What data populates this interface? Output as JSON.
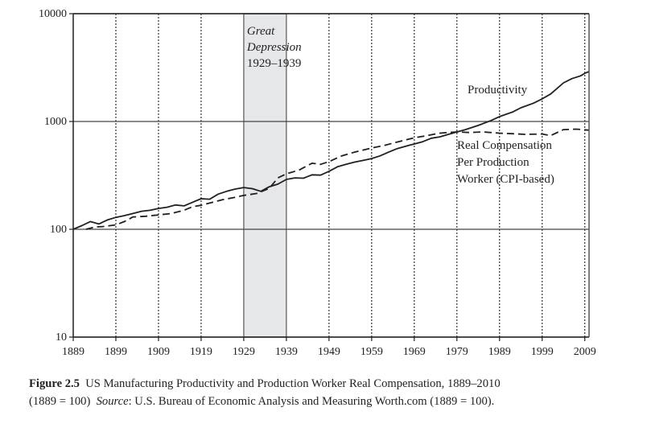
{
  "chart_data": {
    "type": "line",
    "title": "",
    "xlabel": "",
    "ylabel": "",
    "yscale": "log",
    "xlim": [
      1889,
      2010
    ],
    "ylim": [
      10,
      10000
    ],
    "grid": {
      "vertical_dotted": true,
      "horizontal_at_decades": true
    },
    "x_ticks": [
      1889,
      1899,
      1909,
      1919,
      1929,
      1939,
      1949,
      1959,
      1969,
      1979,
      1989,
      1999,
      2009
    ],
    "y_ticks": [
      10,
      100,
      1000,
      10000
    ],
    "y_tick_labels": [
      "10",
      "100",
      "1000",
      "10000"
    ],
    "shaded_region": {
      "x_start": 1929,
      "x_end": 1939,
      "label_lines": [
        "Great",
        "Depression",
        "1929–1939"
      ],
      "color": "#e6e7e8"
    },
    "series": [
      {
        "name": "Productivity",
        "style": "solid",
        "label_lines": [
          "Productivity"
        ],
        "x": [
          1889,
          1891,
          1893,
          1895,
          1897,
          1899,
          1901,
          1903,
          1905,
          1907,
          1909,
          1911,
          1913,
          1915,
          1917,
          1919,
          1921,
          1923,
          1925,
          1927,
          1929,
          1931,
          1933,
          1935,
          1937,
          1939,
          1941,
          1943,
          1945,
          1947,
          1949,
          1951,
          1953,
          1955,
          1957,
          1959,
          1961,
          1963,
          1965,
          1967,
          1969,
          1971,
          1973,
          1975,
          1977,
          1979,
          1981,
          1984,
          1987,
          1989,
          1992,
          1994,
          1997,
          1999,
          2001,
          2004,
          2006,
          2008,
          2009,
          2010
        ],
        "values": [
          100,
          108,
          118,
          112,
          122,
          129,
          134,
          140,
          147,
          150,
          156,
          160,
          168,
          165,
          178,
          192,
          190,
          212,
          225,
          236,
          244,
          238,
          225,
          248,
          262,
          290,
          300,
          298,
          320,
          318,
          345,
          380,
          400,
          420,
          435,
          453,
          480,
          520,
          560,
          590,
          618,
          650,
          700,
          720,
          760,
          800,
          840,
          920,
          1020,
          1110,
          1220,
          1340,
          1480,
          1620,
          1800,
          2280,
          2500,
          2650,
          2800,
          2900
        ]
      },
      {
        "name": "Real Compensation Per Production Worker (CPI-based)",
        "style": "dashed",
        "label_lines": [
          "Real Compensation",
          "Per Production",
          "Worker (CPI-based)"
        ],
        "x": [
          1892,
          1894,
          1896,
          1899,
          1901,
          1903,
          1906,
          1909,
          1912,
          1915,
          1917,
          1919,
          1921,
          1924,
          1927,
          1929,
          1932,
          1935,
          1937,
          1939,
          1942,
          1945,
          1947,
          1949,
          1952,
          1955,
          1959,
          1962,
          1966,
          1969,
          1972,
          1975,
          1979,
          1982,
          1985,
          1989,
          1992,
          1995,
          1999,
          2001,
          2004,
          2007,
          2010
        ],
        "values": [
          100,
          105,
          106,
          110,
          118,
          130,
          132,
          136,
          140,
          150,
          162,
          167,
          175,
          188,
          198,
          206,
          215,
          240,
          300,
          327,
          355,
          410,
          400,
          424,
          480,
          520,
          567,
          600,
          660,
          705,
          740,
          780,
          800,
          790,
          800,
          780,
          770,
          760,
          765,
          740,
          840,
          850,
          830
        ]
      }
    ]
  },
  "caption": {
    "figure_label": "Figure 2.5",
    "title": "US Manufacturing Productivity and Production Worker Real Compensation, 1889–2010",
    "base_note": "(1889 = 100)",
    "source_label": "Source",
    "source_text": ": U.S. Bureau of Economic Analysis and Measuring Worth.com (1889 = 100)."
  }
}
